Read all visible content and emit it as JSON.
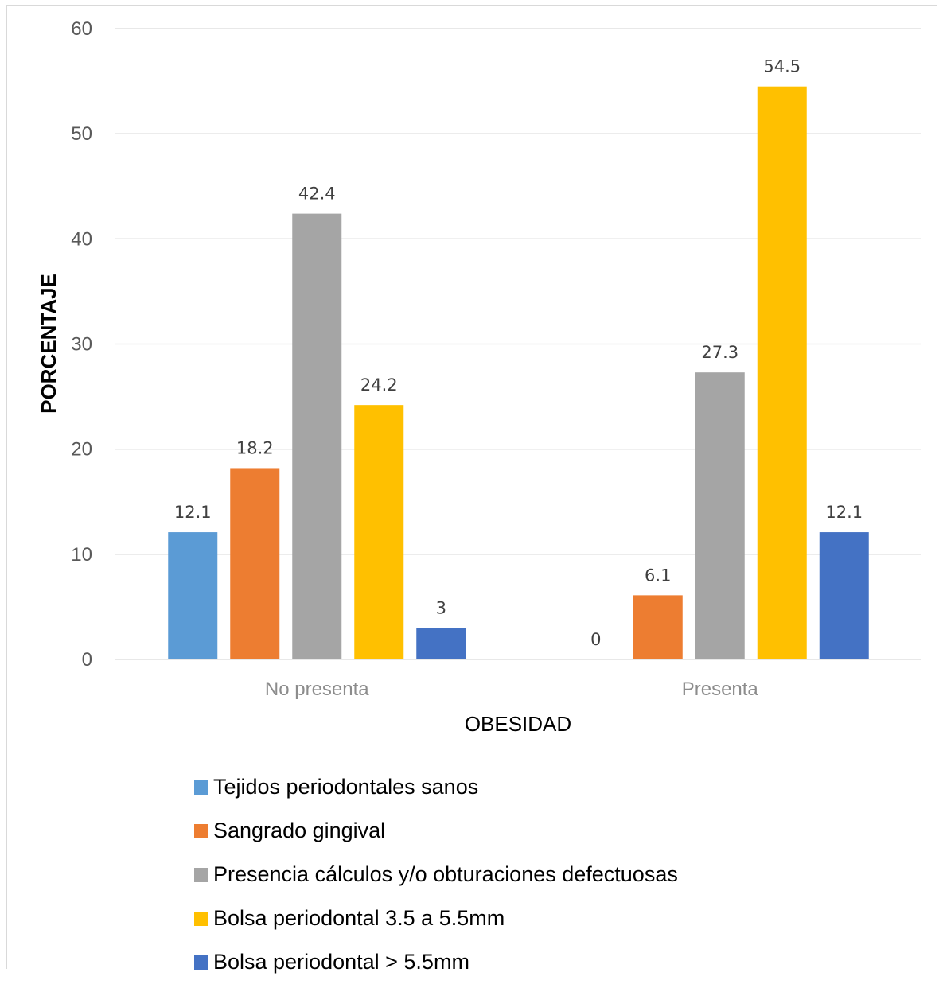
{
  "chart_data": {
    "type": "bar",
    "title": "",
    "xlabel": "OBESIDAD",
    "ylabel": "PORCENTAJE",
    "categories": [
      "No presenta",
      "Presenta"
    ],
    "ylim": [
      0,
      60
    ],
    "yticks": [
      0,
      10,
      20,
      30,
      40,
      50,
      60
    ],
    "grid": true,
    "legend_position": "bottom",
    "series": [
      {
        "name": "Tejidos periodontales sanos",
        "color": "#5b9bd5",
        "values": [
          12.1,
          0
        ]
      },
      {
        "name": "Sangrado gingival",
        "color": "#ed7d31",
        "values": [
          18.2,
          6.1
        ]
      },
      {
        "name": "Presencia cálculos y/o obturaciones defectuosas",
        "color": "#a5a5a5",
        "values": [
          42.4,
          27.3
        ]
      },
      {
        "name": "Bolsa periodontal 3.5 a 5.5mm",
        "color": "#ffc000",
        "values": [
          24.2,
          54.5
        ]
      },
      {
        "name": "Bolsa periodontal > 5.5mm",
        "color": "#4472c4",
        "values": [
          3,
          12.1
        ]
      }
    ]
  }
}
